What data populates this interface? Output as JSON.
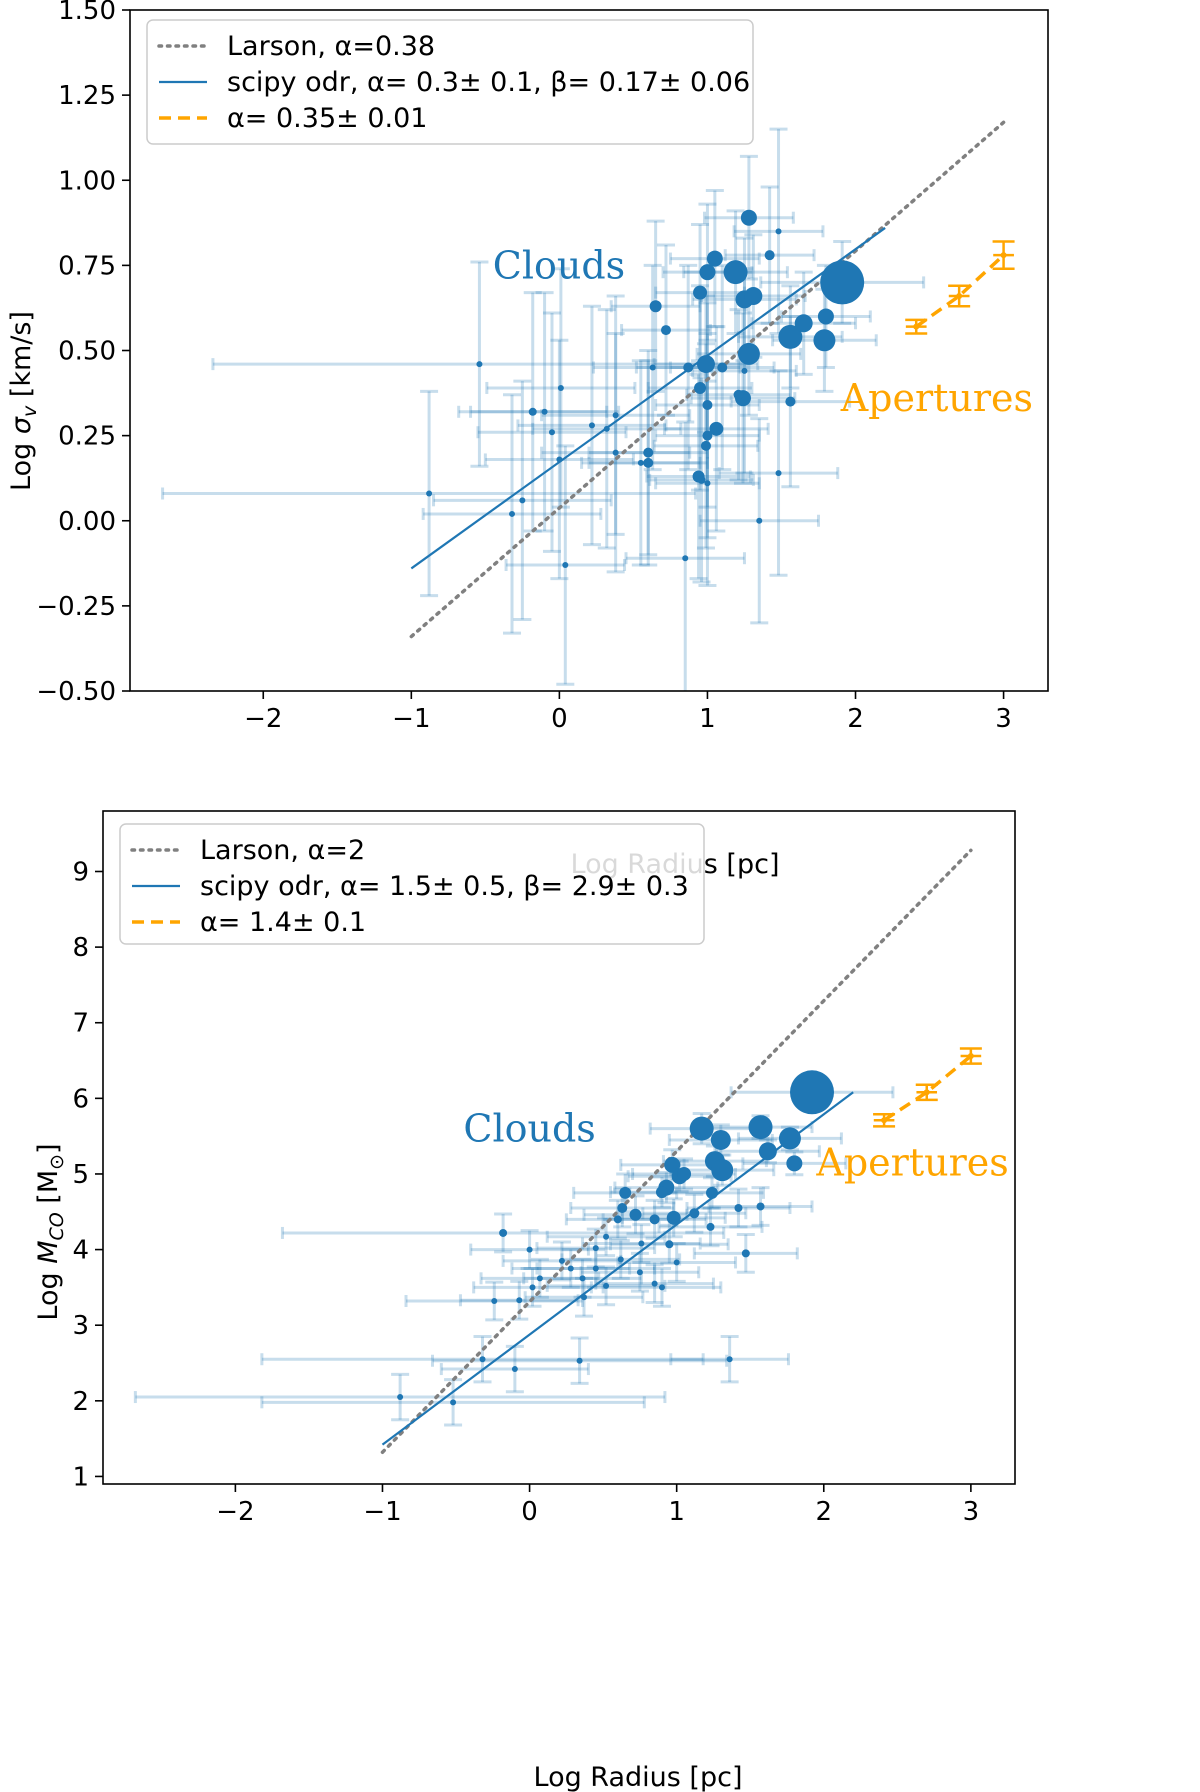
{
  "chart_data": [
    {
      "type": "scatter",
      "panel": "top",
      "xlabel": "Log Radius [pc]",
      "ylabel": "Log σ_v [km/s]",
      "ylabel_parts": [
        "Log ",
        "σ",
        "v",
        " [km/s]"
      ],
      "xlim": [
        -2.9,
        3.3
      ],
      "ylim": [
        -0.5,
        1.5
      ],
      "xticks": [
        -2,
        -1,
        0,
        1,
        2,
        3
      ],
      "xtick_labels": [
        "−2",
        "−1",
        "0",
        "1",
        "2",
        "3"
      ],
      "yticks": [
        -0.5,
        -0.25,
        0.0,
        0.25,
        0.5,
        0.75,
        1.0,
        1.25,
        1.5
      ],
      "ytick_labels": [
        "−0.50",
        "−0.25",
        "0.00",
        "0.25",
        "0.50",
        "0.75",
        "1.00",
        "1.25",
        "1.50"
      ],
      "legend": {
        "position": "top-left",
        "entries": [
          {
            "style": "dotted",
            "color": "#808080",
            "label": "Larson, α=0.38"
          },
          {
            "style": "solid",
            "color": "#1f77b4",
            "label": "scipy odr, α=  0.3±  0.1, β= 0.17± 0.06"
          },
          {
            "style": "dashed",
            "color": "#ffa500",
            "label": "α= 0.35± 0.01"
          }
        ]
      },
      "lines": {
        "larson": {
          "x": [
            -1.0,
            3.0
          ],
          "y": [
            -0.34,
            1.17
          ],
          "color": "#808080"
        },
        "odr": {
          "x": [
            -1.0,
            2.2
          ],
          "y": [
            -0.14,
            0.86
          ],
          "color": "#1f77b4"
        }
      },
      "annotations": [
        {
          "text": "Clouds",
          "x": -0.45,
          "y": 0.75,
          "color": "#1f77b4"
        },
        {
          "text": "Apertures",
          "x": 1.9,
          "y": 0.36,
          "color": "#ffa500"
        }
      ],
      "clouds": [
        {
          "x": 1.91,
          "y": 0.7,
          "s": 22,
          "xe": 0.55,
          "ye": 0.12
        },
        {
          "x": 1.28,
          "y": 0.89,
          "s": 8,
          "xe": 0.3,
          "ye": 0.18
        },
        {
          "x": 1.05,
          "y": 0.77,
          "s": 8,
          "xe": 0.3,
          "ye": 0.2
        },
        {
          "x": 1.0,
          "y": 0.73,
          "s": 8,
          "xe": 0.3,
          "ye": 0.2
        },
        {
          "x": 1.19,
          "y": 0.73,
          "s": 12,
          "xe": 0.35,
          "ye": 0.18
        },
        {
          "x": 1.25,
          "y": 0.65,
          "s": 9,
          "xe": 0.35,
          "ye": 0.18
        },
        {
          "x": 1.31,
          "y": 0.66,
          "s": 9,
          "xe": 0.35,
          "ye": 0.18
        },
        {
          "x": 0.95,
          "y": 0.67,
          "s": 7,
          "xe": 0.3,
          "ye": 0.2
        },
        {
          "x": 0.65,
          "y": 0.63,
          "s": 6,
          "xe": 0.3,
          "ye": 0.25
        },
        {
          "x": 0.72,
          "y": 0.56,
          "s": 5,
          "xe": 0.3,
          "ye": 0.25
        },
        {
          "x": 0.99,
          "y": 0.46,
          "s": 9,
          "xe": 0.35,
          "ye": 0.2
        },
        {
          "x": 1.28,
          "y": 0.49,
          "s": 11,
          "xe": 0.35,
          "ye": 0.18
        },
        {
          "x": 1.56,
          "y": 0.54,
          "s": 12,
          "xe": 0.35,
          "ye": 0.15
        },
        {
          "x": 1.65,
          "y": 0.58,
          "s": 9,
          "xe": 0.35,
          "ye": 0.15
        },
        {
          "x": 1.79,
          "y": 0.53,
          "s": 11,
          "xe": 0.35,
          "ye": 0.15
        },
        {
          "x": 1.8,
          "y": 0.6,
          "s": 8,
          "xe": 0.3,
          "ye": 0.15
        },
        {
          "x": 1.42,
          "y": 0.78,
          "s": 5,
          "xe": 0.3,
          "ye": 0.2
        },
        {
          "x": 1.48,
          "y": 0.85,
          "s": 3,
          "xe": 0.3,
          "ye": 0.3
        },
        {
          "x": 0.63,
          "y": 0.45,
          "s": 3,
          "xe": 0.4,
          "ye": 0.3
        },
        {
          "x": 0.87,
          "y": 0.45,
          "s": 5,
          "xe": 0.35,
          "ye": 0.3
        },
        {
          "x": 0.95,
          "y": 0.39,
          "s": 6,
          "xe": 0.35,
          "ye": 0.3
        },
        {
          "x": 1.0,
          "y": 0.34,
          "s": 5,
          "xe": 0.35,
          "ye": 0.3
        },
        {
          "x": 1.06,
          "y": 0.27,
          "s": 7,
          "xe": 0.35,
          "ye": 0.3
        },
        {
          "x": 1.0,
          "y": 0.25,
          "s": 5,
          "xe": 0.35,
          "ye": 0.3
        },
        {
          "x": 0.99,
          "y": 0.22,
          "s": 5,
          "xe": 0.35,
          "ye": 0.3
        },
        {
          "x": 1.24,
          "y": 0.36,
          "s": 8,
          "xe": 0.35,
          "ye": 0.25
        },
        {
          "x": 1.21,
          "y": 0.37,
          "s": 5,
          "xe": 0.35,
          "ye": 0.25
        },
        {
          "x": 1.56,
          "y": 0.35,
          "s": 5,
          "xe": 0.4,
          "ye": 0.25
        },
        {
          "x": 0.6,
          "y": 0.2,
          "s": 5,
          "xe": 0.4,
          "ye": 0.3
        },
        {
          "x": 0.6,
          "y": 0.17,
          "s": 5,
          "xe": 0.4,
          "ye": 0.3
        },
        {
          "x": 0.55,
          "y": 0.17,
          "s": 3,
          "xe": 0.4,
          "ye": 0.3
        },
        {
          "x": 0.94,
          "y": 0.13,
          "s": 6,
          "xe": 0.35,
          "ye": 0.3
        },
        {
          "x": 0.96,
          "y": 0.12,
          "s": 4,
          "xe": 0.35,
          "ye": 0.3
        },
        {
          "x": 1.0,
          "y": 0.11,
          "s": 3,
          "xe": 0.35,
          "ye": 0.3
        },
        {
          "x": 1.48,
          "y": 0.14,
          "s": 3,
          "xe": 0.4,
          "ye": 0.3
        },
        {
          "x": 0.38,
          "y": 0.31,
          "s": 3,
          "xe": 0.5,
          "ye": 0.35
        },
        {
          "x": 0.32,
          "y": 0.27,
          "s": 3,
          "xe": 0.5,
          "ye": 0.35
        },
        {
          "x": 0.22,
          "y": 0.28,
          "s": 3,
          "xe": 0.5,
          "ye": 0.35
        },
        {
          "x": 0.38,
          "y": 0.2,
          "s": 3,
          "xe": 0.5,
          "ye": 0.35
        },
        {
          "x": -0.1,
          "y": 0.32,
          "s": 3,
          "xe": 0.5,
          "ye": 0.35
        },
        {
          "x": -0.18,
          "y": 0.32,
          "s": 4,
          "xe": 0.5,
          "ye": 0.35
        },
        {
          "x": -0.05,
          "y": 0.26,
          "s": 3,
          "xe": 0.5,
          "ye": 0.35
        },
        {
          "x": 0.01,
          "y": 0.39,
          "s": 3,
          "xe": 0.5,
          "ye": 0.35
        },
        {
          "x": 0.0,
          "y": 0.18,
          "s": 3,
          "xe": 0.5,
          "ye": 0.35
        },
        {
          "x": -0.54,
          "y": 0.46,
          "s": 3,
          "xe": 1.8,
          "ye": 0.3
        },
        {
          "x": -0.88,
          "y": 0.08,
          "s": 3,
          "xe": 1.8,
          "ye": 0.3
        },
        {
          "x": -0.25,
          "y": 0.06,
          "s": 3,
          "xe": 0.6,
          "ye": 0.35
        },
        {
          "x": -0.32,
          "y": 0.02,
          "s": 3,
          "xe": 0.6,
          "ye": 0.35
        },
        {
          "x": 0.04,
          "y": -0.13,
          "s": 3,
          "xe": 0.4,
          "ye": 0.35
        },
        {
          "x": 0.85,
          "y": -0.11,
          "s": 3,
          "xe": 0.4,
          "ye": 0.4
        },
        {
          "x": 1.35,
          "y": 0.0,
          "s": 3,
          "xe": 0.4,
          "ye": 0.3
        },
        {
          "x": 1.25,
          "y": 0.44,
          "s": 3,
          "xe": 0.35,
          "ye": 0.3
        },
        {
          "x": 1.1,
          "y": 0.45,
          "s": 5,
          "xe": 0.35,
          "ye": 0.3
        }
      ],
      "apertures": {
        "x": [
          2.41,
          2.7,
          3.0
        ],
        "y": [
          0.57,
          0.66,
          0.78
        ],
        "yerr": [
          0.02,
          0.03,
          0.04
        ],
        "xerr": [
          0.07,
          0.07,
          0.07
        ],
        "color": "#ffa500"
      }
    },
    {
      "type": "scatter",
      "panel": "bottom",
      "xlabel": "Log Radius [pc]",
      "ylabel": "Log M_CO [M⊙]",
      "ylabel_parts": [
        "Log ",
        "M",
        "CO",
        " [M",
        "⊙",
        "]"
      ],
      "xlim": [
        -2.9,
        3.3
      ],
      "ylim": [
        0.9,
        9.8
      ],
      "xticks": [
        -2,
        -1,
        0,
        1,
        2,
        3
      ],
      "xtick_labels": [
        "−2",
        "−1",
        "0",
        "1",
        "2",
        "3"
      ],
      "yticks": [
        1,
        2,
        3,
        4,
        5,
        6,
        7,
        8,
        9
      ],
      "ytick_labels": [
        "1",
        "2",
        "3",
        "4",
        "5",
        "6",
        "7",
        "8",
        "9"
      ],
      "legend": {
        "position": "top-left",
        "entries": [
          {
            "style": "dotted",
            "color": "#808080",
            "label": "Larson, α=2"
          },
          {
            "style": "solid",
            "color": "#1f77b4",
            "label": "scipy odr, α=  1.5±  0.5, β=  2.9±  0.3"
          },
          {
            "style": "dashed",
            "color": "#ffa500",
            "label": "α=  1.4±  0.1"
          }
        ]
      },
      "lines": {
        "larson": {
          "x": [
            -1.0,
            3.0
          ],
          "y": [
            1.32,
            9.28
          ],
          "color": "#808080"
        },
        "odr": {
          "x": [
            -1.0,
            2.2
          ],
          "y": [
            1.42,
            6.08
          ],
          "color": "#1f77b4"
        }
      },
      "annotations": [
        {
          "text": "Clouds",
          "x": -0.45,
          "y": 5.6,
          "color": "#1f77b4"
        },
        {
          "text": "Apertures",
          "x": 1.95,
          "y": 5.15,
          "color": "#ffa500"
        }
      ],
      "clouds": [
        {
          "x": 1.92,
          "y": 6.08,
          "s": 22,
          "xe": 0.55,
          "ye": 0.15
        },
        {
          "x": 1.17,
          "y": 5.6,
          "s": 12,
          "xe": 0.35,
          "ye": 0.2
        },
        {
          "x": 1.3,
          "y": 5.45,
          "s": 10,
          "xe": 0.35,
          "ye": 0.2
        },
        {
          "x": 1.57,
          "y": 5.62,
          "s": 12,
          "xe": 0.35,
          "ye": 0.15
        },
        {
          "x": 1.77,
          "y": 5.47,
          "s": 11,
          "xe": 0.35,
          "ye": 0.15
        },
        {
          "x": 1.26,
          "y": 5.17,
          "s": 10,
          "xe": 0.35,
          "ye": 0.2
        },
        {
          "x": 1.31,
          "y": 5.05,
          "s": 11,
          "xe": 0.35,
          "ye": 0.2
        },
        {
          "x": 1.62,
          "y": 5.3,
          "s": 9,
          "xe": 0.35,
          "ye": 0.15
        },
        {
          "x": 1.8,
          "y": 5.14,
          "s": 8,
          "xe": 0.35,
          "ye": 0.15
        },
        {
          "x": 0.97,
          "y": 5.12,
          "s": 8,
          "xe": 0.35,
          "ye": 0.2
        },
        {
          "x": 1.02,
          "y": 4.97,
          "s": 8,
          "xe": 0.35,
          "ye": 0.2
        },
        {
          "x": 1.05,
          "y": 5.0,
          "s": 7,
          "xe": 0.35,
          "ye": 0.2
        },
        {
          "x": 0.93,
          "y": 4.82,
          "s": 8,
          "xe": 0.35,
          "ye": 0.2
        },
        {
          "x": 0.9,
          "y": 4.76,
          "s": 6,
          "xe": 0.35,
          "ye": 0.2
        },
        {
          "x": 0.65,
          "y": 4.75,
          "s": 6,
          "xe": 0.35,
          "ye": 0.25
        },
        {
          "x": 1.24,
          "y": 4.75,
          "s": 6,
          "xe": 0.35,
          "ye": 0.2
        },
        {
          "x": 0.72,
          "y": 4.46,
          "s": 6,
          "xe": 0.35,
          "ye": 0.25
        },
        {
          "x": 0.63,
          "y": 4.55,
          "s": 5,
          "xe": 0.35,
          "ye": 0.25
        },
        {
          "x": 0.6,
          "y": 4.4,
          "s": 4,
          "xe": 0.35,
          "ye": 0.25
        },
        {
          "x": 0.85,
          "y": 4.4,
          "s": 5,
          "xe": 0.35,
          "ye": 0.25
        },
        {
          "x": 0.98,
          "y": 4.42,
          "s": 7,
          "xe": 0.35,
          "ye": 0.25
        },
        {
          "x": 1.12,
          "y": 4.48,
          "s": 5,
          "xe": 0.35,
          "ye": 0.25
        },
        {
          "x": 1.23,
          "y": 4.3,
          "s": 4,
          "xe": 0.35,
          "ye": 0.25
        },
        {
          "x": 1.42,
          "y": 4.55,
          "s": 4,
          "xe": 0.35,
          "ye": 0.25
        },
        {
          "x": 1.57,
          "y": 4.57,
          "s": 4,
          "xe": 0.35,
          "ye": 0.25
        },
        {
          "x": 1.47,
          "y": 3.95,
          "s": 4,
          "xe": 0.35,
          "ye": 0.25
        },
        {
          "x": 0.52,
          "y": 4.17,
          "s": 3,
          "xe": 0.4,
          "ye": 0.25
        },
        {
          "x": 0.76,
          "y": 4.08,
          "s": 3,
          "xe": 0.4,
          "ye": 0.25
        },
        {
          "x": 0.95,
          "y": 4.07,
          "s": 4,
          "xe": 0.4,
          "ye": 0.25
        },
        {
          "x": 0.45,
          "y": 4.02,
          "s": 3,
          "xe": 0.4,
          "ye": 0.25
        },
        {
          "x": 0.28,
          "y": 3.75,
          "s": 3,
          "xe": 0.4,
          "ye": 0.25
        },
        {
          "x": 0.62,
          "y": 3.87,
          "s": 3,
          "xe": 0.4,
          "ye": 0.25
        },
        {
          "x": 0.75,
          "y": 3.7,
          "s": 3,
          "xe": 0.4,
          "ye": 0.25
        },
        {
          "x": 0.85,
          "y": 3.55,
          "s": 3,
          "xe": 0.4,
          "ye": 0.25
        },
        {
          "x": 0.9,
          "y": 3.5,
          "s": 3,
          "xe": 0.4,
          "ye": 0.25
        },
        {
          "x": 1.0,
          "y": 3.83,
          "s": 3,
          "xe": 0.4,
          "ye": 0.25
        },
        {
          "x": 0.45,
          "y": 3.75,
          "s": 3,
          "xe": 0.4,
          "ye": 0.25
        },
        {
          "x": 0.52,
          "y": 3.52,
          "s": 3,
          "xe": 0.4,
          "ye": 0.25
        },
        {
          "x": 0.36,
          "y": 3.62,
          "s": 3,
          "xe": 0.4,
          "ye": 0.25
        },
        {
          "x": 0.37,
          "y": 3.37,
          "s": 3,
          "xe": 0.4,
          "ye": 0.25
        },
        {
          "x": 0.22,
          "y": 3.85,
          "s": 3,
          "xe": 0.4,
          "ye": 0.25
        },
        {
          "x": 0.07,
          "y": 3.62,
          "s": 3,
          "xe": 0.4,
          "ye": 0.25
        },
        {
          "x": 0.0,
          "y": 4.0,
          "s": 3,
          "xe": 0.4,
          "ye": 0.25
        },
        {
          "x": 0.02,
          "y": 3.5,
          "s": 3,
          "xe": 0.4,
          "ye": 0.25
        },
        {
          "x": -0.07,
          "y": 3.33,
          "s": 3,
          "xe": 0.4,
          "ye": 0.25
        },
        {
          "x": -0.24,
          "y": 3.32,
          "s": 3,
          "xe": 0.6,
          "ye": 0.25
        },
        {
          "x": -0.18,
          "y": 4.22,
          "s": 4,
          "xe": 1.5,
          "ye": 0.25
        },
        {
          "x": -0.32,
          "y": 2.55,
          "s": 3,
          "xe": 1.5,
          "ye": 0.3
        },
        {
          "x": -0.1,
          "y": 2.42,
          "s": 3,
          "xe": 0.5,
          "ye": 0.3
        },
        {
          "x": 0.34,
          "y": 2.53,
          "s": 3,
          "xe": 1.0,
          "ye": 0.3
        },
        {
          "x": 1.36,
          "y": 2.55,
          "s": 3,
          "xe": 0.4,
          "ye": 0.3
        },
        {
          "x": -0.88,
          "y": 2.05,
          "s": 3,
          "xe": 1.8,
          "ye": 0.3
        },
        {
          "x": -0.52,
          "y": 1.98,
          "s": 3,
          "xe": 1.3,
          "ye": 0.3
        }
      ],
      "apertures": {
        "x": [
          2.41,
          2.7,
          3.0
        ],
        "y": [
          5.71,
          6.08,
          6.56
        ],
        "yerr": [
          0.08,
          0.1,
          0.1
        ],
        "xerr": [
          0.07,
          0.07,
          0.07
        ],
        "color": "#ffa500"
      }
    }
  ]
}
